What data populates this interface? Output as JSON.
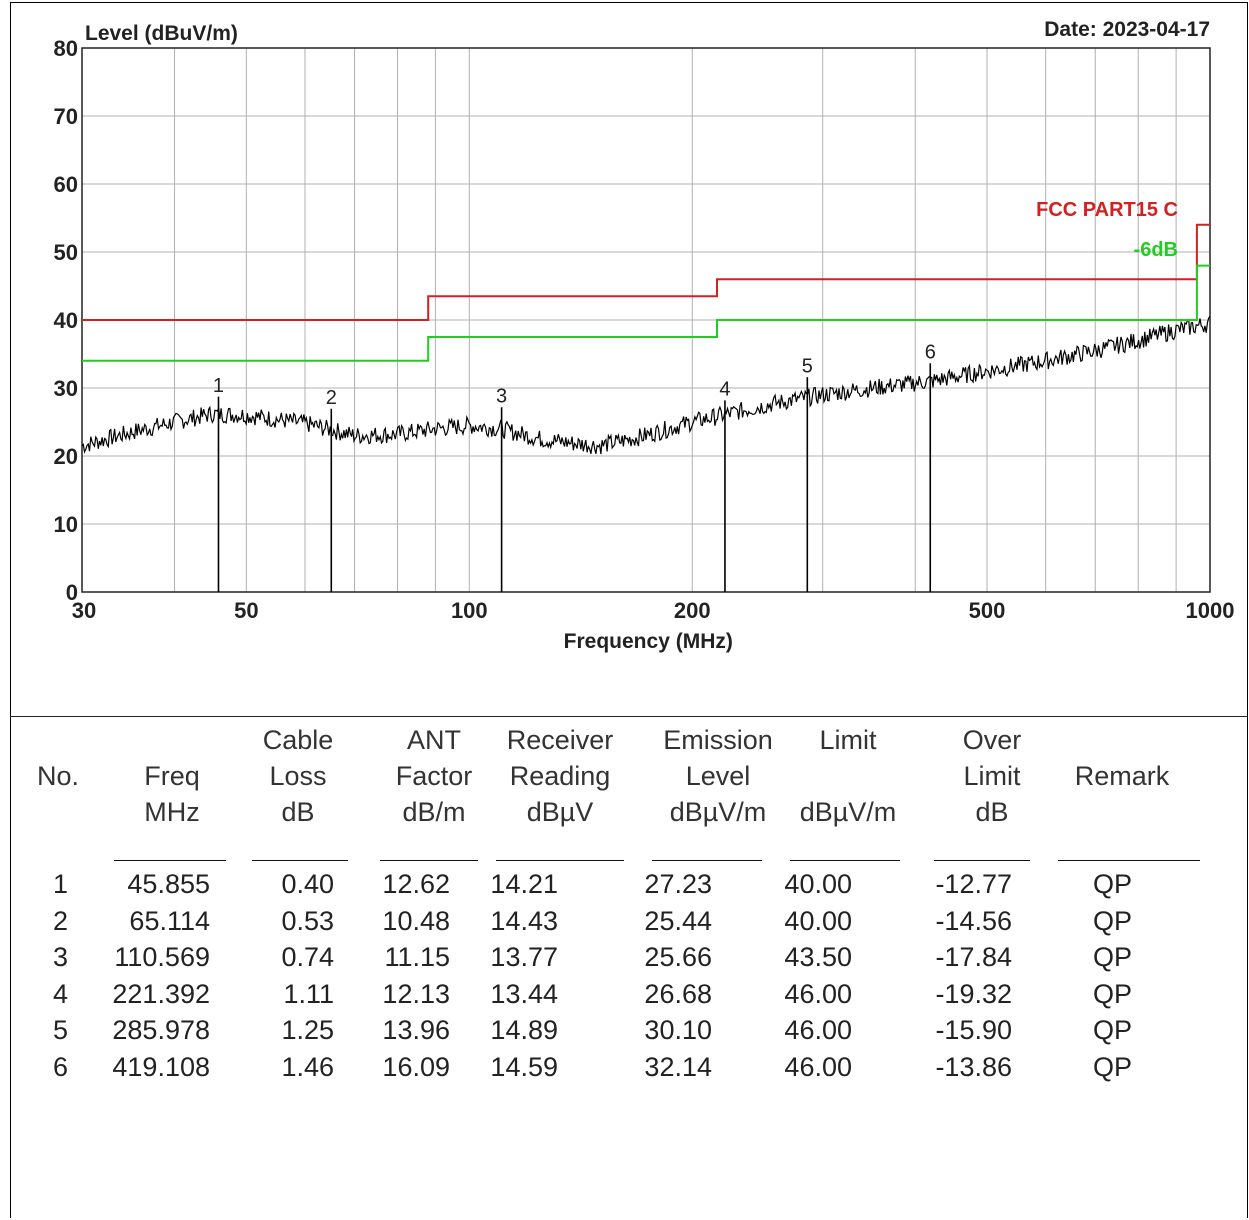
{
  "chart_data": {
    "type": "line",
    "title": "",
    "ylabel": "Level (dBuV/m)",
    "xlabel": "Frequency (MHz)",
    "date_label": "Date: 2023-04-17",
    "x_scale": "log",
    "xlim": [
      30,
      1000
    ],
    "ylim": [
      0,
      80
    ],
    "grid": true,
    "x_tick_labels": [
      "30",
      "50",
      "100",
      "200",
      "500",
      "1000"
    ],
    "y_tick_labels": [
      "0",
      "10",
      "20",
      "30",
      "40",
      "50",
      "60",
      "70",
      "80"
    ],
    "limit_label": "FCC PART15 C",
    "margin_label": "-6dB",
    "colors": {
      "limit": "#d42020",
      "margin": "#22cc22",
      "trace": "#000000",
      "grid": "#b0b0b0"
    },
    "series": [
      {
        "name": "FCC PART15 C",
        "x": [
          30,
          88,
          88,
          216,
          216,
          960,
          960,
          1000
        ],
        "y": [
          40,
          40,
          43.5,
          43.5,
          46,
          46,
          54,
          54
        ]
      },
      {
        "name": "-6dB",
        "x": [
          30,
          88,
          88,
          216,
          216,
          960,
          960,
          1000
        ],
        "y": [
          34,
          34,
          37.5,
          37.5,
          40,
          40,
          48,
          48
        ]
      },
      {
        "name": "",
        "x": [
          30,
          35,
          40,
          45,
          50,
          60,
          70,
          80,
          90,
          100,
          110,
          125,
          140,
          150,
          170,
          200,
          230,
          260,
          300,
          350,
          420,
          500,
          600,
          700,
          800,
          900,
          1000
        ],
        "y": [
          21.5,
          23.5,
          25,
          26.2,
          26.0,
          24.8,
          23.0,
          23.2,
          24.0,
          24.5,
          24.0,
          22.5,
          21.8,
          21.5,
          22.8,
          25.0,
          26.5,
          27.8,
          29.0,
          30.0,
          31.0,
          32.5,
          34.0,
          35.5,
          37.0,
          38.5,
          39.5
        ]
      }
    ],
    "markers": [
      {
        "label": "1",
        "freq": 45.855,
        "level": 27.23
      },
      {
        "label": "2",
        "freq": 65.114,
        "level": 25.44
      },
      {
        "label": "3",
        "freq": 110.569,
        "level": 25.66
      },
      {
        "label": "4",
        "freq": 221.392,
        "level": 26.68
      },
      {
        "label": "5",
        "freq": 285.978,
        "level": 30.1
      },
      {
        "label": "6",
        "freq": 419.108,
        "level": 32.14
      }
    ]
  },
  "table": {
    "headers": [
      [
        "No."
      ],
      [
        "Freq",
        "MHz"
      ],
      [
        "Cable",
        "Loss",
        "dB"
      ],
      [
        "ANT",
        "Factor",
        "dB/m"
      ],
      [
        "Receiver",
        "Reading",
        "dBµV"
      ],
      [
        "Emission",
        "Level",
        "dBµV/m"
      ],
      [
        "Limit",
        "",
        "dBµV/m"
      ],
      [
        "Over",
        "Limit",
        "dB"
      ],
      [
        "Remark"
      ]
    ],
    "rows": [
      [
        "1",
        "45.855",
        "0.40",
        "12.62",
        "14.21",
        "27.23",
        "40.00",
        "-12.77",
        "QP"
      ],
      [
        "2",
        "65.114",
        "0.53",
        "10.48",
        "14.43",
        "25.44",
        "40.00",
        "-14.56",
        "QP"
      ],
      [
        "3",
        "110.569",
        "0.74",
        "11.15",
        "13.77",
        "25.66",
        "43.50",
        "-17.84",
        "QP"
      ],
      [
        "4",
        "221.392",
        "1.11",
        "12.13",
        "13.44",
        "26.68",
        "46.00",
        "-19.32",
        "QP"
      ],
      [
        "5",
        "285.978",
        "1.25",
        "13.96",
        "14.89",
        "30.10",
        "46.00",
        "-15.90",
        "QP"
      ],
      [
        "6",
        "419.108",
        "1.46",
        "16.09",
        "14.59",
        "32.14",
        "46.00",
        "-13.86",
        "QP"
      ]
    ]
  }
}
